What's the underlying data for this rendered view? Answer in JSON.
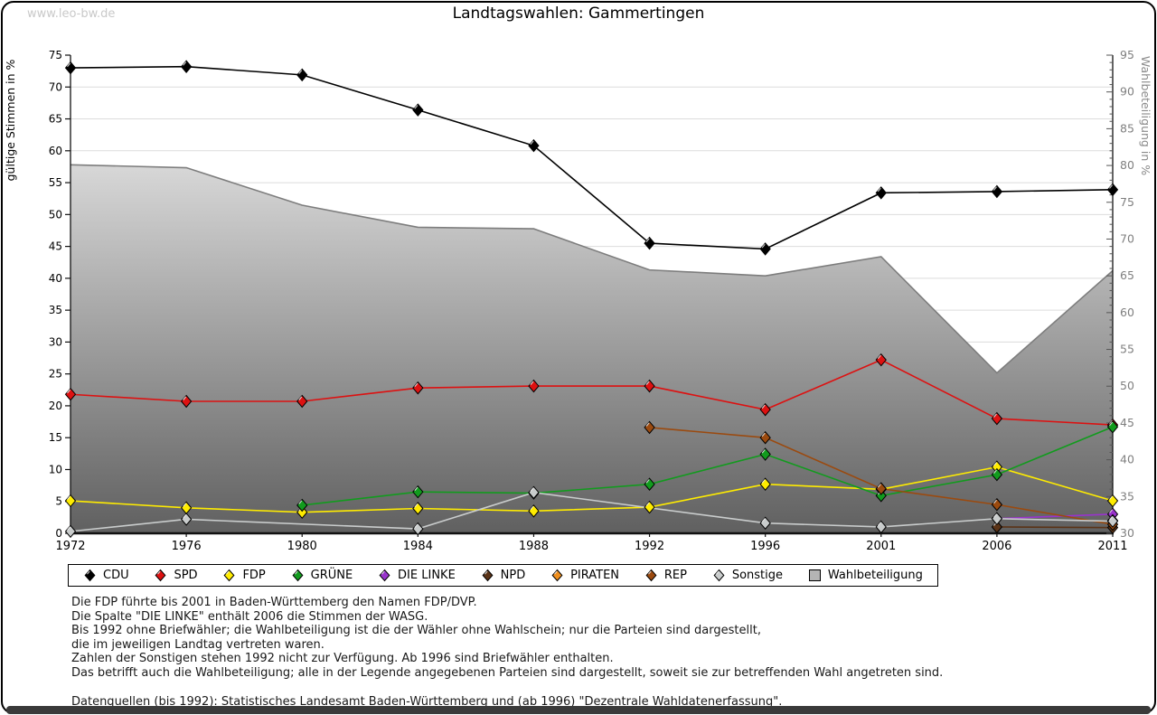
{
  "watermark": "www.leo-bw.de",
  "title": "Landtagswahlen: Gammertingen",
  "chart_data": {
    "type": "line",
    "title": "Landtagswahlen: Gammertingen",
    "x": [
      1972,
      1976,
      1980,
      1984,
      1988,
      1992,
      1996,
      2001,
      2006,
      2011
    ],
    "left_axis": {
      "label": "gültige Stimmen in %",
      "min": 0,
      "max": 75,
      "tick_step": 5
    },
    "right_axis": {
      "label": "Wahlbeteiligung in %",
      "min": 30,
      "max": 95,
      "tick_step": 5
    },
    "grid": true,
    "legend_position": "bottom",
    "series": [
      {
        "name": "CDU",
        "color": "#000000",
        "axis": "left",
        "values": [
          73.0,
          73.2,
          71.9,
          66.4,
          60.8,
          45.5,
          44.6,
          53.4,
          53.6,
          53.9
        ]
      },
      {
        "name": "SPD",
        "color": "#dd1111",
        "axis": "left",
        "values": [
          21.8,
          20.7,
          20.7,
          22.8,
          23.1,
          23.1,
          19.4,
          27.2,
          18.0,
          17.0
        ]
      },
      {
        "name": "FDP",
        "color": "#ffec00",
        "axis": "left",
        "values": [
          5.1,
          4.0,
          3.3,
          3.9,
          3.5,
          4.1,
          7.7,
          6.9,
          10.4,
          5.1
        ]
      },
      {
        "name": "GRÜNE",
        "color": "#129b1e",
        "axis": "left",
        "values": [
          null,
          null,
          4.4,
          6.5,
          6.3,
          7.7,
          12.4,
          5.9,
          9.2,
          16.7
        ]
      },
      {
        "name": "DIE LINKE",
        "color": "#9933cc",
        "axis": "left",
        "values": [
          null,
          null,
          null,
          null,
          null,
          null,
          null,
          null,
          2.3,
          3.0
        ]
      },
      {
        "name": "NPD",
        "color": "#5a3317",
        "axis": "left",
        "values": [
          null,
          null,
          null,
          null,
          null,
          null,
          null,
          null,
          1.0,
          0.9
        ]
      },
      {
        "name": "PIRATEN",
        "color": "#ef8f1f",
        "axis": "left",
        "values": [
          null,
          null,
          null,
          null,
          null,
          null,
          null,
          null,
          null,
          2.0
        ]
      },
      {
        "name": "REP",
        "color": "#9b4a0f",
        "axis": "left",
        "values": [
          null,
          null,
          null,
          null,
          null,
          16.6,
          15.0,
          7.0,
          4.5,
          1.4
        ]
      },
      {
        "name": "Sonstige",
        "color": "#c9cccc",
        "axis": "left",
        "values": [
          0.3,
          2.2,
          null,
          0.7,
          6.4,
          null,
          1.6,
          1.0,
          2.3,
          1.9
        ]
      }
    ],
    "area_series": {
      "name": "Wahlbeteiligung",
      "axis": "right",
      "line_color": "#7d7d7d",
      "fill_top": "#fbfbfb",
      "fill_bottom": "#606060",
      "values": [
        80.1,
        79.7,
        74.6,
        71.6,
        71.4,
        65.8,
        65.0,
        67.6,
        51.8,
        65.7
      ]
    }
  },
  "footnotes": [
    "Die FDP führte bis 2001 in Baden-Württemberg den Namen FDP/DVP.",
    "Die Spalte \"DIE LINKE\" enthält 2006 die Stimmen der WASG.",
    "Bis 1992 ohne Briefwähler; die Wahlbeteiligung ist die der Wähler ohne Wahlschein; nur die Parteien sind dargestellt,",
    "die im jeweiligen Landtag vertreten waren.",
    "Zahlen der Sonstigen stehen 1992 nicht zur Verfügung. Ab 1996 sind Briefwähler enthalten.",
    "Das betrifft auch die Wahlbeteiligung; alle in der Legende angegebenen Parteien sind dargestellt, soweit sie zur betreffenden Wahl angetreten sind.",
    "Datenquellen (bis 1992): Statistisches Landesamt Baden-Württemberg und (ab 1996) \"Dezentrale Wahldatenerfassung\"."
  ]
}
